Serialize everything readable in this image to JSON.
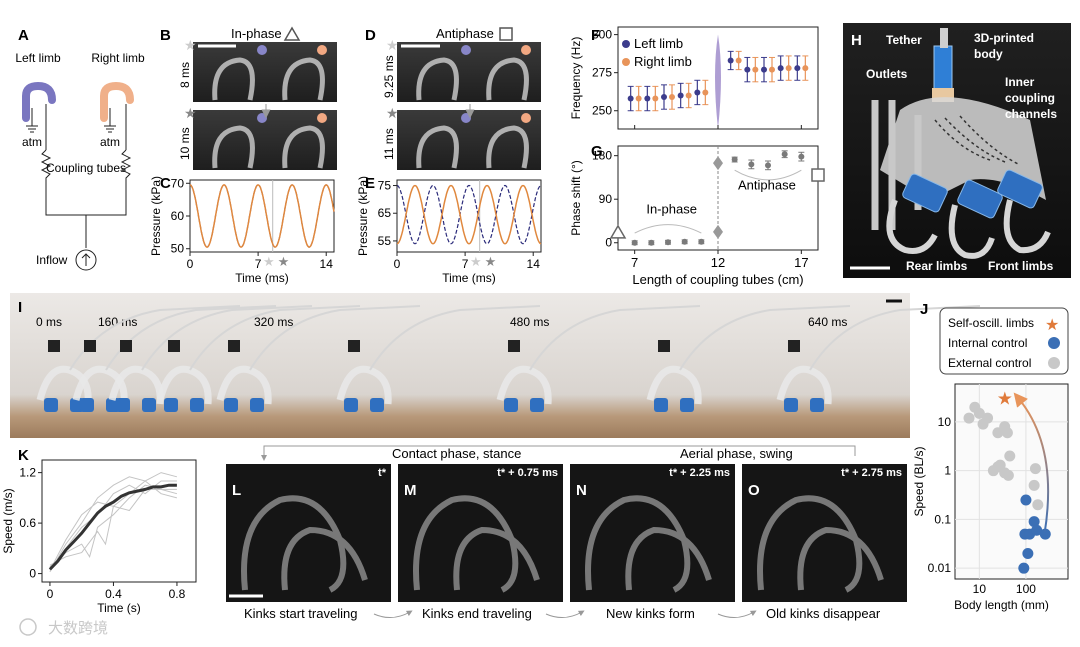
{
  "panels": {
    "A": "A",
    "B": "B",
    "C": "C",
    "D": "D",
    "E": "E",
    "F": "F",
    "G": "G",
    "H": "H",
    "I": "I",
    "J": "J",
    "K": "K",
    "L": "L",
    "M": "M",
    "N": "N",
    "O": "O"
  },
  "colors": {
    "left": "#3c3c8c",
    "right": "#e8945a",
    "left_line": "#2a2a7a",
    "right_line": "#e0883e",
    "gray_marker": "#7a7a7a",
    "blue_marker": "#3b6fb5",
    "star": "#e07a3a",
    "photo_dark": "#2a2a2a"
  },
  "a": {
    "left_limb": "Left limb",
    "right_limb": "Right limb",
    "atm": "atm",
    "coupling": "Coupling tubes",
    "inflow": "Inflow"
  },
  "b": {
    "title": "In-phase",
    "t1": "8 ms",
    "t2": "10 ms"
  },
  "d": {
    "title": "Antiphase",
    "t1": "9.25 ms",
    "t2": "11 ms"
  },
  "chart_data": [
    {
      "panel": "C",
      "type": "line",
      "xlabel": "Time (ms)",
      "ylabel": "Pressure (kPa)",
      "xlim": [
        0,
        14.8
      ],
      "ylim": [
        49,
        71
      ],
      "xticks": [
        "0",
        "7",
        "14"
      ],
      "yticks": [
        "50",
        "60",
        "70"
      ],
      "period_ms": 3.5,
      "phase_shift_deg": 0,
      "center": 60,
      "amplitude": 9.5,
      "series": [
        {
          "key": "left",
          "style": "dashed"
        },
        {
          "key": "right",
          "style": "solid"
        }
      ]
    },
    {
      "panel": "E",
      "type": "line",
      "xlabel": "Time (ms)",
      "ylabel": "Pressure (kPa)",
      "xlim": [
        0,
        14.8
      ],
      "ylim": [
        51,
        77
      ],
      "xticks": [
        "0",
        "7",
        "14"
      ],
      "yticks": [
        "55",
        "65",
        "75"
      ],
      "period_ms": 3.7,
      "phase_shift_deg": 180,
      "center": 64.5,
      "amplitude": 10.5,
      "series": [
        {
          "key": "left",
          "style": "dashed"
        },
        {
          "key": "right",
          "style": "solid"
        }
      ]
    },
    {
      "panel": "F",
      "type": "scatter",
      "ylabel": "Frequency (Hz)",
      "ylim": [
        238,
        305
      ],
      "yticks": [
        "250",
        "275",
        "300"
      ],
      "legend": [
        "Left limb",
        "Right limb"
      ],
      "x": [
        7,
        8,
        9,
        10,
        11,
        13,
        14,
        15,
        16,
        17
      ],
      "left": [
        258,
        258,
        259,
        260,
        262,
        283,
        277,
        277,
        278,
        278
      ],
      "right": [
        258,
        258,
        259,
        260,
        262,
        283,
        277,
        277,
        278,
        278
      ],
      "err": [
        8,
        8,
        8,
        8,
        8,
        6,
        8,
        8,
        8,
        8
      ]
    },
    {
      "panel": "G",
      "type": "scatter",
      "xlabel": "Length of coupling tubes (cm)",
      "ylabel": "Phase shift (°)",
      "xlim": [
        6,
        18
      ],
      "ylim": [
        -15,
        200
      ],
      "xticks": [
        "7",
        "12",
        "17"
      ],
      "yticks": [
        "0",
        "90",
        "180"
      ],
      "x": [
        7,
        8,
        9,
        10,
        11,
        13,
        14,
        15,
        16,
        17
      ],
      "y": [
        0,
        0,
        1,
        2,
        2,
        172,
        162,
        160,
        183,
        178
      ],
      "err": [
        4,
        4,
        4,
        4,
        4,
        5,
        9,
        9,
        7,
        9
      ],
      "inphase": "In-phase",
      "antiphase": "Antiphase"
    },
    {
      "panel": "J",
      "type": "scatter",
      "xlabel": "Body length (mm)",
      "ylabel": "Speed (BL/s)",
      "xlog": true,
      "ylog": true,
      "xlim": [
        3,
        800
      ],
      "ylim": [
        0.006,
        60
      ],
      "xticks": [
        "10",
        "100"
      ],
      "yticks": [
        "10",
        "1",
        "0.1",
        "0.01"
      ],
      "legend": [
        "Self-oscill. limbs",
        "Internal control",
        "External control"
      ],
      "self": [
        [
          35,
          30
        ]
      ],
      "internal": [
        [
          100,
          0.25
        ],
        [
          95,
          0.05
        ],
        [
          120,
          0.05
        ],
        [
          150,
          0.09
        ],
        [
          170,
          0.06
        ],
        [
          110,
          0.02
        ],
        [
          90,
          0.01
        ],
        [
          260,
          0.05
        ]
      ],
      "external": [
        [
          6,
          12
        ],
        [
          8,
          20
        ],
        [
          10,
          15
        ],
        [
          12,
          9
        ],
        [
          15,
          12
        ],
        [
          25,
          6
        ],
        [
          35,
          8
        ],
        [
          40,
          6
        ],
        [
          45,
          2
        ],
        [
          25,
          1.2
        ],
        [
          28,
          1.3
        ],
        [
          35,
          0.9
        ],
        [
          20,
          1
        ],
        [
          42,
          0.8
        ],
        [
          150,
          0.5
        ],
        [
          160,
          1.1
        ],
        [
          180,
          0.2
        ]
      ]
    },
    {
      "panel": "K",
      "type": "line",
      "xlabel": "Time (s)",
      "ylabel": "Speed (m/s)",
      "xlim": [
        -0.05,
        0.92
      ],
      "ylim": [
        -0.1,
        1.35
      ],
      "xticks": [
        "0",
        "0.4",
        "0.8"
      ],
      "yticks": [
        "0",
        "0.6",
        "1.2"
      ],
      "mean_x": [
        0,
        0.05,
        0.1,
        0.15,
        0.2,
        0.25,
        0.3,
        0.35,
        0.4,
        0.45,
        0.5,
        0.55,
        0.6,
        0.65,
        0.7,
        0.75,
        0.8
      ],
      "mean_y": [
        0.05,
        0.15,
        0.28,
        0.38,
        0.48,
        0.6,
        0.72,
        0.8,
        0.85,
        0.92,
        0.96,
        0.98,
        1.0,
        1.03,
        1.03,
        1.05,
        1.05
      ],
      "thin": [
        [
          [
            0,
            0.02
          ],
          [
            0.1,
            0.35
          ],
          [
            0.2,
            0.6
          ],
          [
            0.3,
            0.9
          ],
          [
            0.4,
            1.05
          ],
          [
            0.5,
            1.15
          ],
          [
            0.6,
            1.1
          ],
          [
            0.7,
            1.2
          ],
          [
            0.8,
            1.15
          ]
        ],
        [
          [
            0,
            0.1
          ],
          [
            0.1,
            0.2
          ],
          [
            0.2,
            0.25
          ],
          [
            0.3,
            0.5
          ],
          [
            0.35,
            0.35
          ],
          [
            0.4,
            0.8
          ],
          [
            0.5,
            0.75
          ],
          [
            0.6,
            1.0
          ],
          [
            0.7,
            1.0
          ],
          [
            0.8,
            0.95
          ]
        ],
        [
          [
            0,
            0.05
          ],
          [
            0.1,
            0.3
          ],
          [
            0.2,
            0.55
          ],
          [
            0.3,
            0.7
          ],
          [
            0.4,
            0.95
          ],
          [
            0.5,
            1.05
          ],
          [
            0.6,
            0.95
          ],
          [
            0.7,
            1.1
          ],
          [
            0.8,
            1.1
          ]
        ],
        [
          [
            0,
            0.08
          ],
          [
            0.1,
            0.25
          ],
          [
            0.2,
            0.35
          ],
          [
            0.25,
            0.2
          ],
          [
            0.3,
            0.55
          ],
          [
            0.4,
            0.7
          ],
          [
            0.5,
            0.9
          ],
          [
            0.6,
            1.05
          ],
          [
            0.7,
            1.0
          ],
          [
            0.8,
            1.0
          ]
        ],
        [
          [
            0,
            0.04
          ],
          [
            0.1,
            0.4
          ],
          [
            0.2,
            0.7
          ],
          [
            0.3,
            0.85
          ],
          [
            0.4,
            0.8
          ],
          [
            0.5,
            0.95
          ],
          [
            0.6,
            1.1
          ],
          [
            0.7,
            0.95
          ],
          [
            0.8,
            0.9
          ]
        ]
      ]
    }
  ],
  "h": {
    "tether": "Tether",
    "body": "3D-printed body",
    "outlets": "Outlets",
    "inner": "Inner coupling channels",
    "rear": "Rear limbs",
    "front": "Front limbs"
  },
  "i": {
    "t0": "0 ms",
    "t1": "160 ms",
    "t2": "320 ms",
    "t3": "480 ms",
    "t4": "640 ms"
  },
  "lo": {
    "contact": "Contact phase, stance",
    "aerial": "Aerial phase, swing",
    "l_time": "t*",
    "m_time": "t* + 0.75 ms",
    "n_time": "t* + 2.25 ms",
    "o_time": "t* + 2.75 ms",
    "cap_l": "Kinks start traveling",
    "cap_m": "Kinks end traveling",
    "cap_n": "New kinks form",
    "cap_o": "Old kinks disappear"
  },
  "watermark": "大数跨境"
}
